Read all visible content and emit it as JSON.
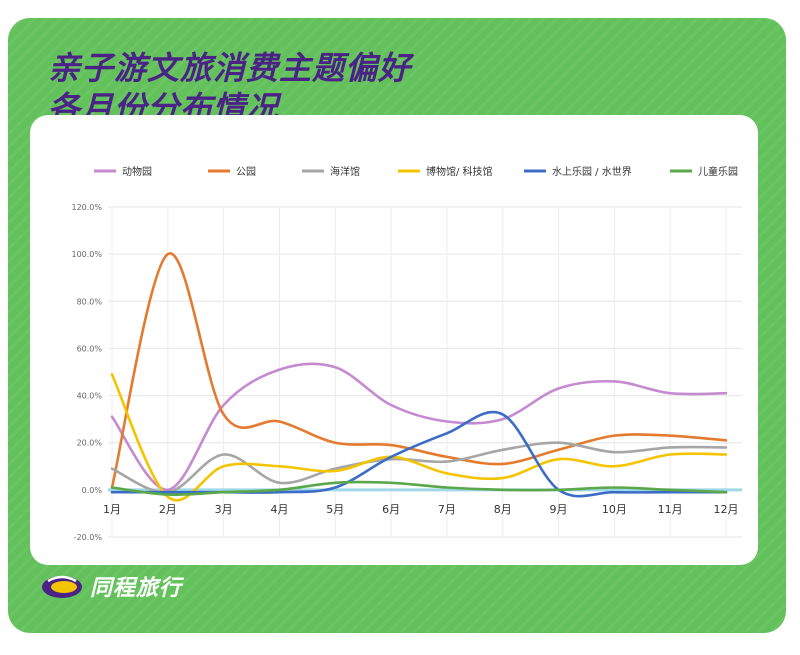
{
  "header": {
    "title_line1": "亲子游文旅消费主题偏好",
    "title_line2": "各月份分布情况"
  },
  "brand": {
    "name": "同程旅行"
  },
  "colors": {
    "background": "#62c15a",
    "title": "#4b2386",
    "zero_line": "#9fd8e6"
  },
  "chart_data": {
    "type": "line",
    "categories": [
      "1月",
      "2月",
      "3月",
      "4月",
      "5月",
      "6月",
      "7月",
      "8月",
      "9月",
      "10月",
      "11月",
      "12月"
    ],
    "y_ticks": [
      "120.0%",
      "100.0%",
      "80.0%",
      "60.0%",
      "40.0%",
      "20.0%",
      "0.0%",
      "-20.0%"
    ],
    "ylim": [
      -20,
      120
    ],
    "grid": true,
    "legend_position": "top",
    "series": [
      {
        "name": "动物园",
        "color": "#c58ad0",
        "values": [
          31,
          0,
          36,
          51,
          52,
          36,
          29,
          30,
          43,
          46,
          41,
          41
        ]
      },
      {
        "name": "公园",
        "color": "#e47a2e",
        "values": [
          1,
          100,
          32,
          29,
          20,
          19,
          14,
          11,
          17,
          23,
          23,
          21
        ]
      },
      {
        "name": "海洋馆",
        "color": "#a6a6a6",
        "values": [
          9,
          -1,
          15,
          3,
          9,
          13,
          12,
          17,
          20,
          16,
          18,
          18
        ]
      },
      {
        "name": "博物馆/ 科技馆",
        "color": "#f5c400",
        "values": [
          49,
          -3,
          10,
          10,
          8,
          14,
          7,
          5,
          13,
          10,
          15,
          15
        ]
      },
      {
        "name": "水上乐园 / 水世界",
        "color": "#3b6cc6",
        "values": [
          -1,
          -1,
          -1,
          -1,
          1,
          14,
          24,
          32,
          0,
          -1,
          -1,
          -1
        ]
      },
      {
        "name": "儿童乐园",
        "color": "#5aa84a",
        "values": [
          1,
          -2,
          -1,
          0,
          3,
          3,
          1,
          0,
          0,
          1,
          0,
          -1
        ]
      }
    ]
  }
}
